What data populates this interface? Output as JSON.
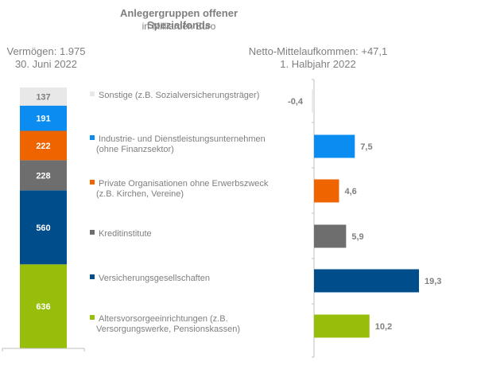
{
  "title": "Anlegergruppen offener Spezialfonds",
  "subtitle": "in Milliarden Euro",
  "left_header": [
    "Vermögen: 1.975",
    "30. Juni 2022"
  ],
  "right_header": [
    "Netto-Mittelaufkommen: +47,1",
    "1. Halbjahr 2022"
  ],
  "chart_data": [
    {
      "type": "bar",
      "orientation": "stacked-vertical",
      "title": "Vermögen: 1.975 — 30. Juni 2022",
      "categories": [
        "Sonstige (z.B. Sozialversicherungsträger)",
        "Industrie- und Dienstleistungsunternehmen (ohne Finanzsektor)",
        "Private Organisationen ohne Erwerbszweck (z.B. Kirchen, Vereine)",
        "Kreditinstitute",
        "Versicherungsgesellschaften",
        "Altersvorsorgeeinrichtungen (z.B. Versorgungswerke, Pensionskassen)"
      ],
      "values": [
        137,
        191,
        222,
        228,
        560,
        636
      ],
      "labels": [
        "137",
        "191",
        "222",
        "228",
        "560",
        "636"
      ],
      "total": 1975
    },
    {
      "type": "bar",
      "orientation": "horizontal",
      "title": "Netto-Mittelaufkommen: +47,1 — 1. Halbjahr 2022",
      "categories": [
        "Sonstige (z.B. Sozialversicherungsträger)",
        "Industrie- und Dienstleistungsunternehmen (ohne Finanzsektor)",
        "Private Organisationen ohne Erwerbszweck (z.B. Kirchen, Vereine)",
        "Kreditinstitute",
        "Versicherungsgesellschaften",
        "Altersvorsorgeeinrichtungen (z.B. Versorgungswerke, Pensionskassen)"
      ],
      "values": [
        -0.4,
        7.5,
        4.6,
        5.9,
        19.3,
        10.2
      ],
      "labels": [
        "-0,4",
        "7,5",
        "4,6",
        "5,9",
        "19,3",
        "10,2"
      ],
      "total": 47.1,
      "xlim": [
        0,
        20
      ]
    }
  ],
  "legend": [
    {
      "lines": [
        "Sonstige (z.B. Sozialversicherungsträger)"
      ],
      "color": "#e8e8e8",
      "text_color": "#7f7f7f"
    },
    {
      "lines": [
        "Industrie- und Dienstleistungsunternehmen",
        "(ohne Finanzsektor)"
      ],
      "color": "#0a8cf0",
      "text_color": "#ffffff"
    },
    {
      "lines": [
        "Private Organisationen ohne Erwerbszweck",
        "(z.B. Kirchen, Vereine)"
      ],
      "color": "#f06400",
      "text_color": "#ffffff"
    },
    {
      "lines": [
        "Kreditinstitute"
      ],
      "color": "#6e6e6e",
      "text_color": "#ffffff"
    },
    {
      "lines": [
        "Versicherungsgesellschaften"
      ],
      "color": "#004d8c",
      "text_color": "#ffffff"
    },
    {
      "lines": [
        "Altersvorsorgeeinrichtungen (z.B.",
        "Versorgungswerke, Pensionskassen)"
      ],
      "color": "#96be0a",
      "text_color": "#ffffff"
    }
  ]
}
